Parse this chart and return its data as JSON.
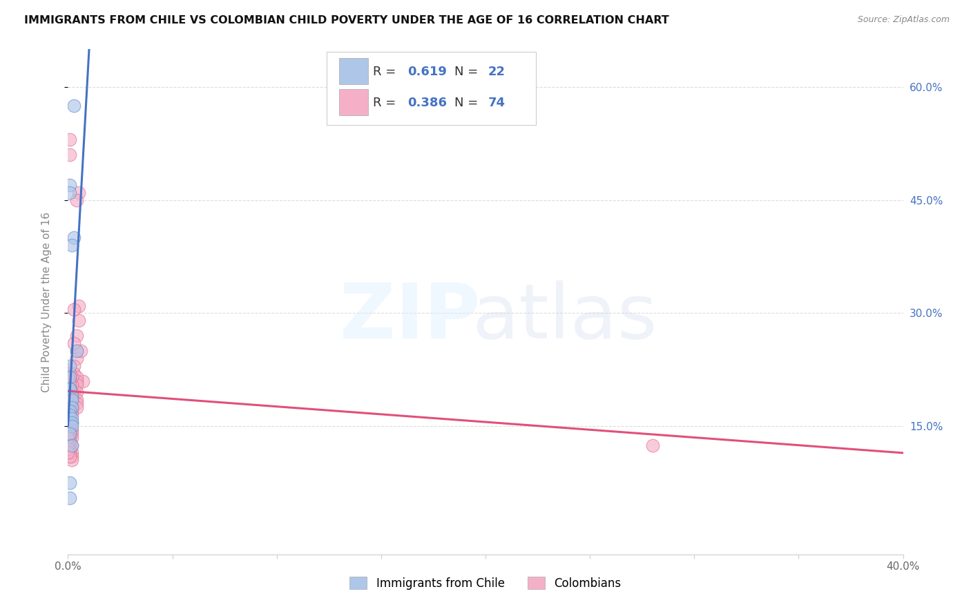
{
  "title": "IMMIGRANTS FROM CHILE VS COLOMBIAN CHILD POVERTY UNDER THE AGE OF 16 CORRELATION CHART",
  "source": "Source: ZipAtlas.com",
  "ylabel": "Child Poverty Under the Age of 16",
  "ytick_labels": [
    "60.0%",
    "45.0%",
    "30.0%",
    "15.0%"
  ],
  "ytick_vals": [
    0.6,
    0.45,
    0.3,
    0.15
  ],
  "r_chile": 0.619,
  "n_chile": 22,
  "r_colombian": 0.386,
  "n_colombian": 74,
  "legend_label_chile": "Immigrants from Chile",
  "legend_label_colombian": "Colombians",
  "color_chile": "#aec6e8",
  "color_colombian": "#f5b0c8",
  "color_chile_edge": "#6090cc",
  "color_colombian_edge": "#e07090",
  "trendline_chile": "#4472c4",
  "trendline_colombian": "#e0507a",
  "xlim": [
    0.0,
    0.4
  ],
  "ylim": [
    -0.02,
    0.65
  ],
  "chile_pts": [
    [
      0.001,
      0.47
    ],
    [
      0.003,
      0.575
    ],
    [
      0.003,
      0.4
    ],
    [
      0.004,
      0.25
    ],
    [
      0.001,
      0.46
    ],
    [
      0.002,
      0.39
    ],
    [
      0.001,
      0.23
    ],
    [
      0.001,
      0.215
    ],
    [
      0.001,
      0.2
    ],
    [
      0.001,
      0.2
    ],
    [
      0.002,
      0.19
    ],
    [
      0.002,
      0.185
    ],
    [
      0.002,
      0.175
    ],
    [
      0.001,
      0.17
    ],
    [
      0.001,
      0.165
    ],
    [
      0.002,
      0.16
    ],
    [
      0.002,
      0.155
    ],
    [
      0.002,
      0.15
    ],
    [
      0.001,
      0.14
    ],
    [
      0.002,
      0.125
    ],
    [
      0.001,
      0.075
    ],
    [
      0.001,
      0.055
    ]
  ],
  "col_pts": [
    [
      0.001,
      0.53
    ],
    [
      0.001,
      0.51
    ],
    [
      0.005,
      0.46
    ],
    [
      0.004,
      0.45
    ],
    [
      0.005,
      0.31
    ],
    [
      0.005,
      0.29
    ],
    [
      0.004,
      0.27
    ],
    [
      0.004,
      0.25
    ],
    [
      0.004,
      0.24
    ],
    [
      0.006,
      0.25
    ],
    [
      0.007,
      0.21
    ],
    [
      0.003,
      0.305
    ],
    [
      0.003,
      0.26
    ],
    [
      0.28,
      0.125
    ],
    [
      0.003,
      0.23
    ],
    [
      0.003,
      0.22
    ],
    [
      0.003,
      0.21
    ],
    [
      0.003,
      0.2
    ],
    [
      0.003,
      0.195
    ],
    [
      0.003,
      0.185
    ],
    [
      0.004,
      0.215
    ],
    [
      0.004,
      0.21
    ],
    [
      0.004,
      0.205
    ],
    [
      0.004,
      0.195
    ],
    [
      0.004,
      0.185
    ],
    [
      0.004,
      0.18
    ],
    [
      0.004,
      0.175
    ],
    [
      0.002,
      0.215
    ],
    [
      0.002,
      0.205
    ],
    [
      0.002,
      0.195
    ],
    [
      0.002,
      0.185
    ],
    [
      0.002,
      0.175
    ],
    [
      0.002,
      0.17
    ],
    [
      0.002,
      0.165
    ],
    [
      0.002,
      0.155
    ],
    [
      0.002,
      0.145
    ],
    [
      0.002,
      0.14
    ],
    [
      0.002,
      0.135
    ],
    [
      0.002,
      0.125
    ],
    [
      0.002,
      0.115
    ],
    [
      0.002,
      0.11
    ],
    [
      0.002,
      0.105
    ],
    [
      0.001,
      0.22
    ],
    [
      0.001,
      0.21
    ],
    [
      0.001,
      0.205
    ],
    [
      0.001,
      0.195
    ],
    [
      0.001,
      0.185
    ],
    [
      0.001,
      0.175
    ],
    [
      0.001,
      0.165
    ],
    [
      0.001,
      0.16
    ],
    [
      0.001,
      0.155
    ],
    [
      0.001,
      0.145
    ],
    [
      0.001,
      0.14
    ],
    [
      0.001,
      0.135
    ],
    [
      0.001,
      0.13
    ],
    [
      0.001,
      0.125
    ],
    [
      0.001,
      0.12
    ],
    [
      0.001,
      0.115
    ],
    [
      0.001,
      0.11
    ],
    [
      0.0,
      0.215
    ],
    [
      0.0,
      0.2
    ],
    [
      0.0,
      0.19
    ],
    [
      0.0,
      0.18
    ],
    [
      0.0,
      0.175
    ],
    [
      0.0,
      0.165
    ],
    [
      0.0,
      0.16
    ],
    [
      0.0,
      0.155
    ],
    [
      0.0,
      0.15
    ],
    [
      0.0,
      0.145
    ],
    [
      0.0,
      0.14
    ],
    [
      0.0,
      0.135
    ],
    [
      0.0,
      0.125
    ],
    [
      0.0,
      0.12
    ],
    [
      0.0,
      0.115
    ]
  ]
}
